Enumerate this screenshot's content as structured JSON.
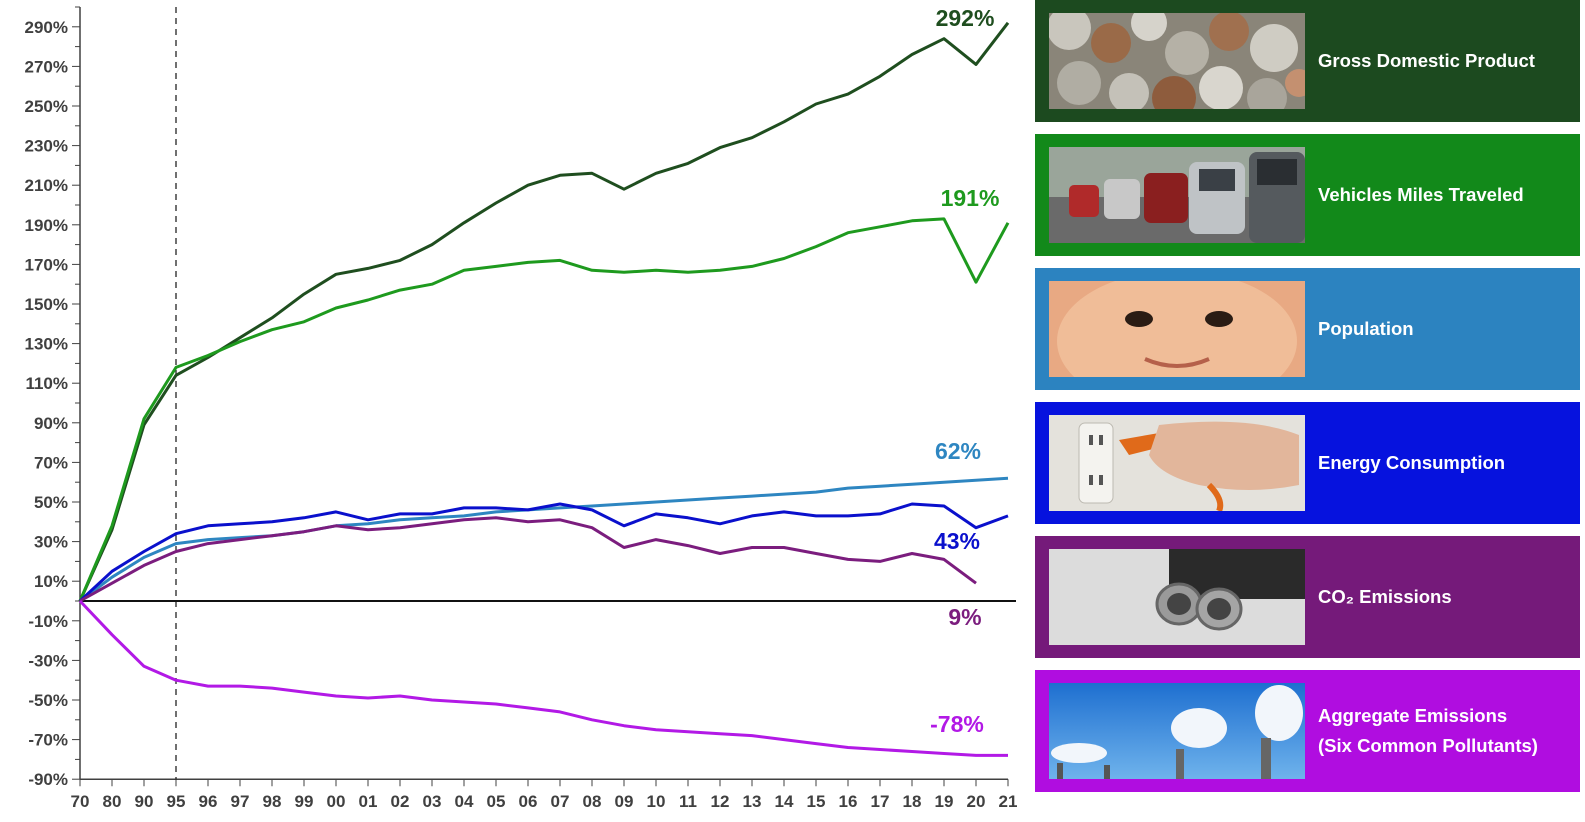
{
  "chart_data": {
    "type": "line",
    "x": [
      "70",
      "80",
      "90",
      "95",
      "96",
      "97",
      "98",
      "99",
      "00",
      "01",
      "02",
      "03",
      "04",
      "05",
      "06",
      "07",
      "08",
      "09",
      "10",
      "11",
      "12",
      "13",
      "14",
      "15",
      "16",
      "17",
      "18",
      "19",
      "20",
      "21"
    ],
    "ylim": [
      -90,
      300
    ],
    "yticks": [
      -90,
      -70,
      -50,
      -30,
      -10,
      10,
      30,
      50,
      70,
      90,
      110,
      130,
      150,
      170,
      190,
      210,
      230,
      250,
      270,
      290
    ],
    "ytick_labels": [
      "-90%",
      "-70%",
      "-50%",
      "-30%",
      "-10%",
      "10%",
      "30%",
      "50%",
      "70%",
      "90%",
      "110%",
      "130%",
      "150%",
      "170%",
      "190%",
      "210%",
      "230%",
      "250%",
      "270%",
      "290%"
    ],
    "grid": false,
    "reference_line_x": "95",
    "legend_position": "right",
    "series": [
      {
        "name": "Gross Domestic Product",
        "color": "#1f4e1f",
        "end_label": "292%",
        "values": [
          0,
          36,
          89,
          114,
          123,
          133,
          143,
          155,
          165,
          168,
          172,
          180,
          191,
          201,
          210,
          215,
          216,
          208,
          216,
          221,
          229,
          234,
          242,
          251,
          256,
          265,
          276,
          284,
          271,
          292
        ]
      },
      {
        "name": "Vehicles Miles Traveled",
        "color": "#1e9a1e",
        "end_label": "191%",
        "values": [
          0,
          38,
          92,
          118,
          124,
          131,
          137,
          141,
          148,
          152,
          157,
          160,
          167,
          169,
          171,
          172,
          167,
          166,
          167,
          166,
          167,
          169,
          173,
          179,
          186,
          189,
          192,
          193,
          161,
          191
        ]
      },
      {
        "name": "Population",
        "color": "#2e86c1",
        "end_label": "62%",
        "values": [
          0,
          12,
          22,
          29,
          31,
          32,
          33,
          35,
          38,
          39,
          41,
          42,
          43,
          45,
          46,
          47,
          48,
          49,
          50,
          51,
          52,
          53,
          54,
          55,
          57,
          58,
          59,
          60,
          61,
          62
        ]
      },
      {
        "name": "Energy Consumption",
        "color": "#0a10cc",
        "end_label": "43%",
        "values": [
          0,
          15,
          25,
          34,
          38,
          39,
          40,
          42,
          45,
          41,
          44,
          44,
          47,
          47,
          46,
          49,
          46,
          38,
          44,
          42,
          39,
          43,
          45,
          43,
          43,
          44,
          49,
          48,
          37,
          43
        ]
      },
      {
        "name": "CO₂ Emissions",
        "color": "#7b1d7e",
        "end_label": "9%",
        "values": [
          0,
          9,
          18,
          25,
          29,
          31,
          33,
          35,
          38,
          36,
          37,
          39,
          41,
          42,
          40,
          41,
          37,
          27,
          31,
          28,
          24,
          27,
          27,
          24,
          21,
          20,
          24,
          21,
          9,
          null
        ]
      },
      {
        "name": "Aggregate Emissions\n(Six Common Pollutants)",
        "color": "#b219e6",
        "end_label": "-78%",
        "values": [
          0,
          -17,
          -33,
          -40,
          -43,
          -43,
          -44,
          -46,
          -48,
          -49,
          -48,
          -50,
          -51,
          -52,
          -54,
          -56,
          -60,
          -63,
          -65,
          -66,
          -67,
          -68,
          -70,
          -72,
          -74,
          -75,
          -76,
          -77,
          -78,
          -78
        ]
      }
    ]
  },
  "legend": {
    "panels": [
      {
        "label": "Gross Domestic Product",
        "color": "#1c4a1f",
        "photo": "coins-photo"
      },
      {
        "label": "Vehicles Miles Traveled",
        "color": "#12891a",
        "photo": "traffic-photo"
      },
      {
        "label": "Population",
        "color": "#2c83c0",
        "photo": "baby-face-photo"
      },
      {
        "label": "Energy Consumption",
        "color": "#0612de",
        "photo": "plug-socket-photo"
      },
      {
        "label": "CO₂ Emissions",
        "color": "#751a7a",
        "photo": "exhaust-pipe-photo"
      },
      {
        "label": "Aggregate Emissions\n(Six Common Pollutants)",
        "color": "#b00de0",
        "photo": "smokestacks-photo"
      }
    ]
  }
}
